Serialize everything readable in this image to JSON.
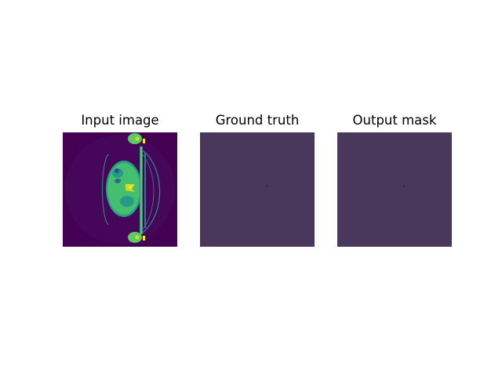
{
  "titles": {
    "input": "Input image",
    "ground_truth": "Ground truth",
    "output": "Output mask"
  },
  "colors": {
    "background": "#440154",
    "mask_background": "#4a375c",
    "scan_green": "#3fb97a",
    "scan_bright": "#c8e020",
    "mask_dot": "#1f3d35"
  }
}
